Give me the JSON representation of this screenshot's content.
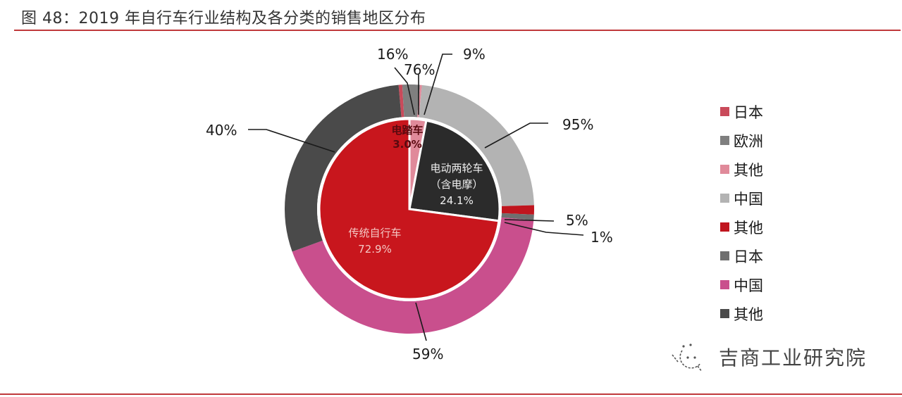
{
  "title": "图 48：2019 年自行车行业结构及各分类的销售地区分布",
  "legend": [
    {
      "label": "日本",
      "color": "#c94a5a"
    },
    {
      "label": "欧洲",
      "color": "#7f7f7f"
    },
    {
      "label": "其他",
      "color": "#e08a9a"
    },
    {
      "label": "中国",
      "color": "#b3b3b3"
    },
    {
      "label": "其他",
      "color": "#c0151e"
    },
    {
      "label": "日本",
      "color": "#6f6f6f"
    },
    {
      "label": "中国",
      "color": "#c94f8d"
    },
    {
      "label": "其他",
      "color": "#4a4a4a"
    }
  ],
  "inner_labels": {
    "e_bike": {
      "name": "电踏车",
      "value": "3.0%"
    },
    "e_two_wheeler": {
      "name": "电动两轮车",
      "sub": "（含电摩）",
      "value": "24.1%"
    },
    "traditional": {
      "name": "传统自行车",
      "value": "72.9%"
    }
  },
  "outer_labels": {
    "ebike_japan": "16%",
    "ebike_europe": "76%",
    "ebike_other": "9%",
    "e2w_china": "95%",
    "e2w_other": "5%",
    "trad_japan": "1%",
    "trad_china": "59%",
    "trad_other": "40%"
  },
  "watermark": "吉商工业研究院",
  "chart_data": {
    "type": "pie",
    "title": "2019 年自行车行业结构及各分类的销售地区分布",
    "inner_ring": {
      "categories": [
        "电踏车",
        "电动两轮车（含电摩）",
        "传统自行车"
      ],
      "values": [
        3.0,
        24.1,
        72.9
      ],
      "colors": [
        "#e08a9a",
        "#2b2b2b",
        "#c8161d"
      ]
    },
    "outer_ring": {
      "series": [
        {
          "parent": "电踏车",
          "categories": [
            "日本",
            "欧洲",
            "其他"
          ],
          "values": [
            16,
            76,
            9
          ],
          "colors": [
            "#c94a5a",
            "#7f7f7f",
            "#e08a9a"
          ]
        },
        {
          "parent": "电动两轮车（含电摩）",
          "categories": [
            "中国",
            "其他"
          ],
          "values": [
            95,
            5
          ],
          "colors": [
            "#b3b3b3",
            "#c0151e"
          ]
        },
        {
          "parent": "传统自行车",
          "categories": [
            "日本",
            "中国",
            "其他"
          ],
          "values": [
            1,
            59,
            40
          ],
          "colors": [
            "#6f6f6f",
            "#c94f8d",
            "#4a4a4a"
          ]
        }
      ]
    },
    "legend_position": "right",
    "unit": "%"
  }
}
